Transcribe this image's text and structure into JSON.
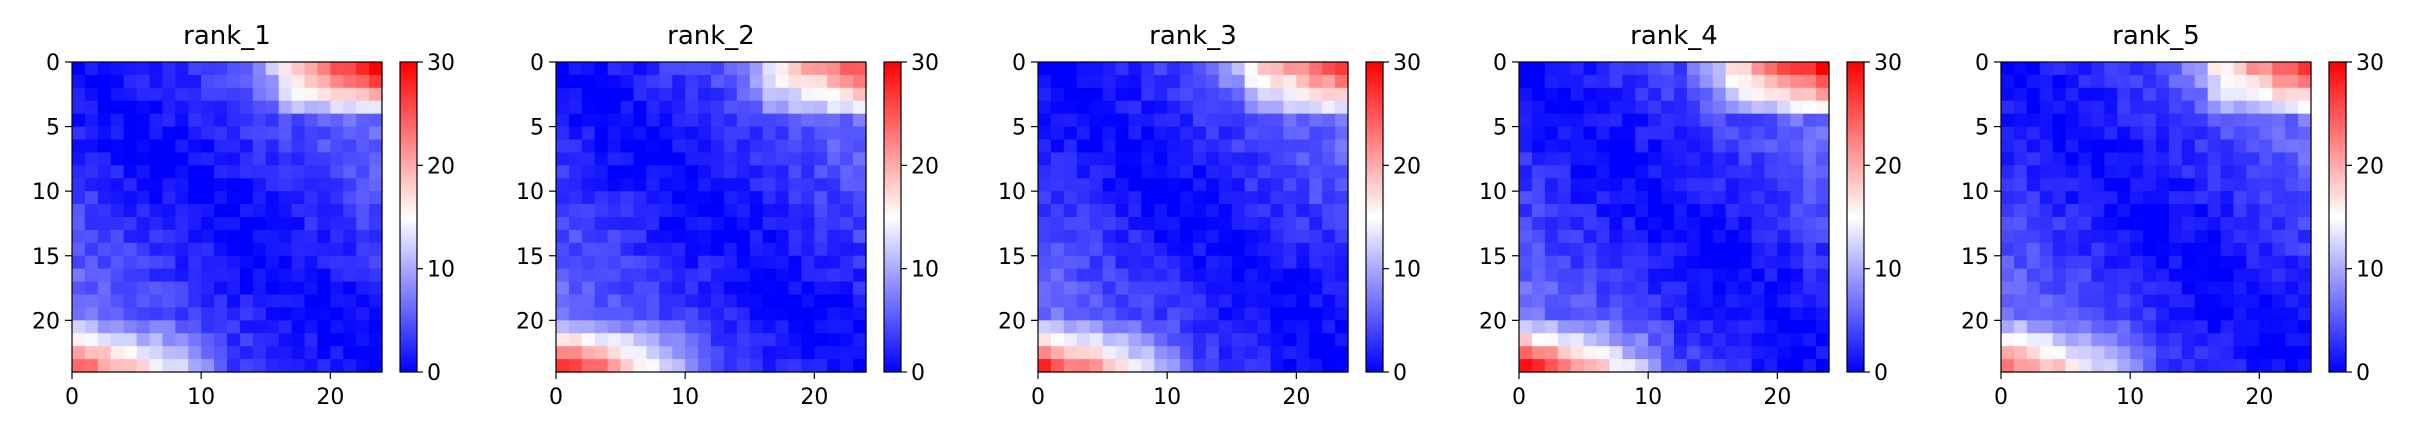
{
  "figure": {
    "background": "#ffffff"
  },
  "chart_data": [
    {
      "type": "heatmap",
      "title": "rank_1",
      "size": 24,
      "xticks": [
        0,
        10,
        20
      ],
      "yticks": [
        0,
        5,
        10,
        15,
        20
      ],
      "colorbar": {
        "min": 0,
        "max": 30,
        "ticks": [
          0,
          10,
          20,
          30
        ],
        "colors": [
          "#0000ff",
          "#ffffff",
          "#ff0000"
        ]
      },
      "values": {
        "diagonal": 0,
        "near_diagonal_per_offset": 0.35,
        "top_right_max": 27,
        "bottom_left_max": 24
      }
    },
    {
      "type": "heatmap",
      "title": "rank_2",
      "size": 24,
      "xticks": [
        0,
        10,
        20
      ],
      "yticks": [
        0,
        5,
        10,
        15,
        20
      ],
      "colorbar": {
        "min": 0,
        "max": 30,
        "ticks": [
          0,
          10,
          20,
          30
        ],
        "colors": [
          "#0000ff",
          "#ffffff",
          "#ff0000"
        ]
      },
      "values": {
        "diagonal": 0,
        "near_diagonal_per_offset": 0.35,
        "top_right_max": 22,
        "bottom_left_max": 28
      }
    },
    {
      "type": "heatmap",
      "title": "rank_3",
      "size": 24,
      "xticks": [
        0,
        10,
        20
      ],
      "yticks": [
        0,
        5,
        10,
        15,
        20
      ],
      "colorbar": {
        "min": 0,
        "max": 30,
        "ticks": [
          0,
          10,
          20,
          30
        ],
        "colors": [
          "#0000ff",
          "#ffffff",
          "#ff0000"
        ]
      },
      "values": {
        "diagonal": 0,
        "near_diagonal_per_offset": 0.35,
        "top_right_max": 24,
        "bottom_left_max": 27
      }
    },
    {
      "type": "heatmap",
      "title": "rank_4",
      "size": 24,
      "xticks": [
        0,
        10,
        20
      ],
      "yticks": [
        0,
        5,
        10,
        15,
        20
      ],
      "colorbar": {
        "min": 0,
        "max": 30,
        "ticks": [
          0,
          10,
          20,
          30
        ],
        "colors": [
          "#0000ff",
          "#ffffff",
          "#ff0000"
        ]
      },
      "values": {
        "diagonal": 0,
        "near_diagonal_per_offset": 0.35,
        "top_right_max": 27,
        "bottom_left_max": 28
      }
    },
    {
      "type": "heatmap",
      "title": "rank_5",
      "size": 24,
      "xticks": [
        0,
        10,
        20
      ],
      "yticks": [
        0,
        5,
        10,
        15,
        20
      ],
      "colorbar": {
        "min": 0,
        "max": 30,
        "ticks": [
          0,
          10,
          20,
          30
        ],
        "colors": [
          "#0000ff",
          "#ffffff",
          "#ff0000"
        ]
      },
      "values": {
        "diagonal": 0,
        "near_diagonal_per_offset": 0.35,
        "top_right_max": 24,
        "bottom_left_max": 23
      }
    }
  ]
}
